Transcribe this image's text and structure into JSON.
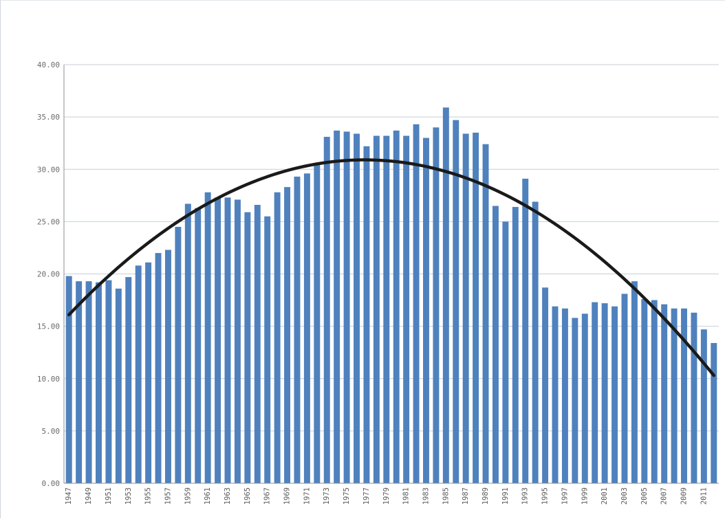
{
  "chart_data": {
    "type": "bar",
    "title": "",
    "xlabel": "",
    "ylabel": "",
    "ylim": [
      0,
      40
    ],
    "yticks": [
      "0.00",
      "5.00",
      "10.00",
      "15.00",
      "20.00",
      "25.00",
      "30.00",
      "35.00",
      "40.00"
    ],
    "grid": "horizontal",
    "legend": "none",
    "bar_color": "#4f81bd",
    "trend_color": "#1a1a1a",
    "trendline": "polynomial",
    "x_tick_labels": [
      "1947",
      "1949",
      "1951",
      "1953",
      "1955",
      "1957",
      "1959",
      "1961",
      "1963",
      "1965",
      "1967",
      "1969",
      "1971",
      "1973",
      "1975",
      "1977",
      "1979",
      "1981",
      "1983",
      "1985",
      "1987",
      "1989",
      "1991",
      "1993",
      "1995",
      "1997",
      "1999",
      "2001",
      "2003",
      "2005",
      "2007",
      "2009",
      "2011"
    ],
    "categories": [
      "1947",
      "1948",
      "1949",
      "1950",
      "1951",
      "1952",
      "1953",
      "1954",
      "1955",
      "1956",
      "1957",
      "1958",
      "1959",
      "1960",
      "1961",
      "1962",
      "1963",
      "1964",
      "1965",
      "1966",
      "1967",
      "1968",
      "1969",
      "1970",
      "1971",
      "1972",
      "1973",
      "1974",
      "1975",
      "1976",
      "1977",
      "1978",
      "1979",
      "1980",
      "1981",
      "1982",
      "1983",
      "1984",
      "1985",
      "1986",
      "1987",
      "1988",
      "1989",
      "1990",
      "1991",
      "1992",
      "1993",
      "1994",
      "1995",
      "1996",
      "1997",
      "1998",
      "1999",
      "2000",
      "2001",
      "2002",
      "2003",
      "2004",
      "2005",
      "2006",
      "2007",
      "2008",
      "2009",
      "2010",
      "2011",
      "2012"
    ],
    "values": [
      19.8,
      19.3,
      19.3,
      19.2,
      19.4,
      18.6,
      19.7,
      20.8,
      21.1,
      22.0,
      22.3,
      24.5,
      26.7,
      26.3,
      27.8,
      27.3,
      27.3,
      27.1,
      25.9,
      26.6,
      25.5,
      27.8,
      28.3,
      29.3,
      29.6,
      30.5,
      33.1,
      33.7,
      33.6,
      33.4,
      32.2,
      33.2,
      33.2,
      33.7,
      33.2,
      34.3,
      33.0,
      34.0,
      35.9,
      34.7,
      33.4,
      33.5,
      32.4,
      26.5,
      25.0,
      26.4,
      29.1,
      26.9,
      18.7,
      16.9,
      16.7,
      15.8,
      16.2,
      17.3,
      17.2,
      16.9,
      18.1,
      19.3,
      17.6,
      17.5,
      17.1,
      16.7,
      16.7,
      16.3,
      14.7,
      13.4
    ],
    "trend_values": [
      16.1,
      30.9,
      10.3
    ]
  }
}
